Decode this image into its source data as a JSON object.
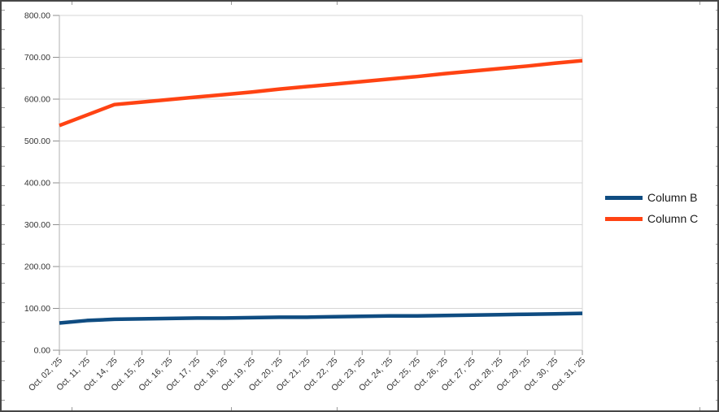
{
  "chart_data": {
    "type": "line",
    "title": "",
    "xlabel": "",
    "ylabel": "",
    "categories": [
      "Oct. 02, '25",
      "Oct. 11, '25",
      "Oct. 14, '25",
      "Oct. 15, '25",
      "Oct. 16, '25",
      "Oct. 17, '25",
      "Oct. 18, '25",
      "Oct. 19, '25",
      "Oct. 20, '25",
      "Oct. 21, '25",
      "Oct. 22, '25",
      "Oct. 23, '25",
      "Oct. 24, '25",
      "Oct. 25, '25",
      "Oct. 26, '25",
      "Oct. 27, '25",
      "Oct. 28, '25",
      "Oct. 29, '25",
      "Oct. 30, '25",
      "Oct. 31, '25"
    ],
    "series": [
      {
        "name": "Column B",
        "color": "#0f4c81",
        "values": [
          65,
          71,
          74,
          75,
          76,
          77,
          77,
          78,
          79,
          79,
          80,
          81,
          82,
          82,
          83,
          84,
          85,
          86,
          87,
          88
        ]
      },
      {
        "name": "Column C",
        "color": "#ff4313",
        "values": [
          537,
          562,
          587,
          593,
          599,
          605,
          611,
          617,
          624,
          630,
          636,
          642,
          648,
          654,
          661,
          667,
          673,
          679,
          686,
          692
        ]
      }
    ],
    "ylim": [
      0,
      800
    ],
    "y_tick_labels": [
      "800.00",
      "700.00",
      "600.00",
      "500.00",
      "400.00",
      "300.00",
      "200.00",
      "100.00",
      "0.00"
    ],
    "grid": "horizontal",
    "legend_position": "right",
    "legend_entries": [
      "Column B",
      "Column C"
    ]
  },
  "style": {
    "gridline_color": "#d6d6d6",
    "axis_color": "#b0b0b0",
    "tick_color": "#8f8f8f",
    "label_color": "#333333",
    "series_b_color": "#0f4c81",
    "series_c_color": "#ff4313"
  }
}
